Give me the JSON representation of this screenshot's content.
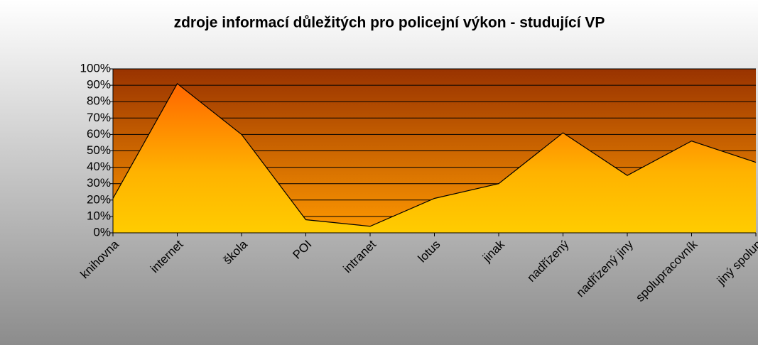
{
  "chart_data": {
    "type": "area",
    "title": "zdroje informací důležitých pro policejní výkon - studující VP",
    "categories": [
      "knihovna",
      "internet",
      "škola",
      "POI",
      "intranet",
      "lotus",
      "jinak",
      "nadřízený",
      "nadřízený jiny",
      "spolupracovník",
      "jiný spolup"
    ],
    "values": [
      21,
      91,
      60,
      8,
      4,
      21,
      30,
      61,
      35,
      56,
      43
    ],
    "color": "#ffcc00",
    "ylim": [
      0,
      100
    ],
    "yticks": [
      {
        "value": 0,
        "label": "0%"
      },
      {
        "value": 10,
        "label": "10%"
      },
      {
        "value": 20,
        "label": "20%"
      },
      {
        "value": 30,
        "label": "30%"
      },
      {
        "value": 40,
        "label": "40%"
      },
      {
        "value": 50,
        "label": "50%"
      },
      {
        "value": 60,
        "label": "60%"
      },
      {
        "value": 70,
        "label": "70%"
      },
      {
        "value": 80,
        "label": "80%"
      },
      {
        "value": 90,
        "label": "90%"
      },
      {
        "value": 100,
        "label": "100%"
      }
    ],
    "grid": true
  }
}
